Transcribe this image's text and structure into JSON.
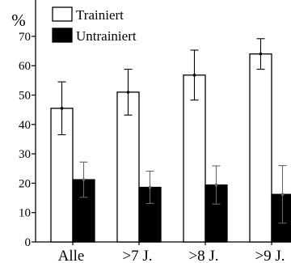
{
  "chart_data": {
    "type": "bar",
    "title": "",
    "ylabel": "%",
    "xlabel": "",
    "ylim": [
      0,
      70
    ],
    "yticks": [
      0,
      10,
      20,
      30,
      40,
      50,
      60,
      70
    ],
    "categories": [
      "Alle",
      ">7 J.",
      ">8 J.",
      ">9 J."
    ],
    "series": [
      {
        "name": "Trainiert",
        "values": [
          45.5,
          51,
          56.8,
          64
        ],
        "error": [
          9,
          7.8,
          8.5,
          5.2
        ],
        "fill": "#ffffff"
      },
      {
        "name": "Untrainiert",
        "values": [
          21.2,
          18.6,
          19.4,
          16.2
        ],
        "error": [
          6,
          5.5,
          6.5,
          9.8
        ],
        "fill": "#000000"
      }
    ],
    "legend": "top-left",
    "grid": false
  }
}
